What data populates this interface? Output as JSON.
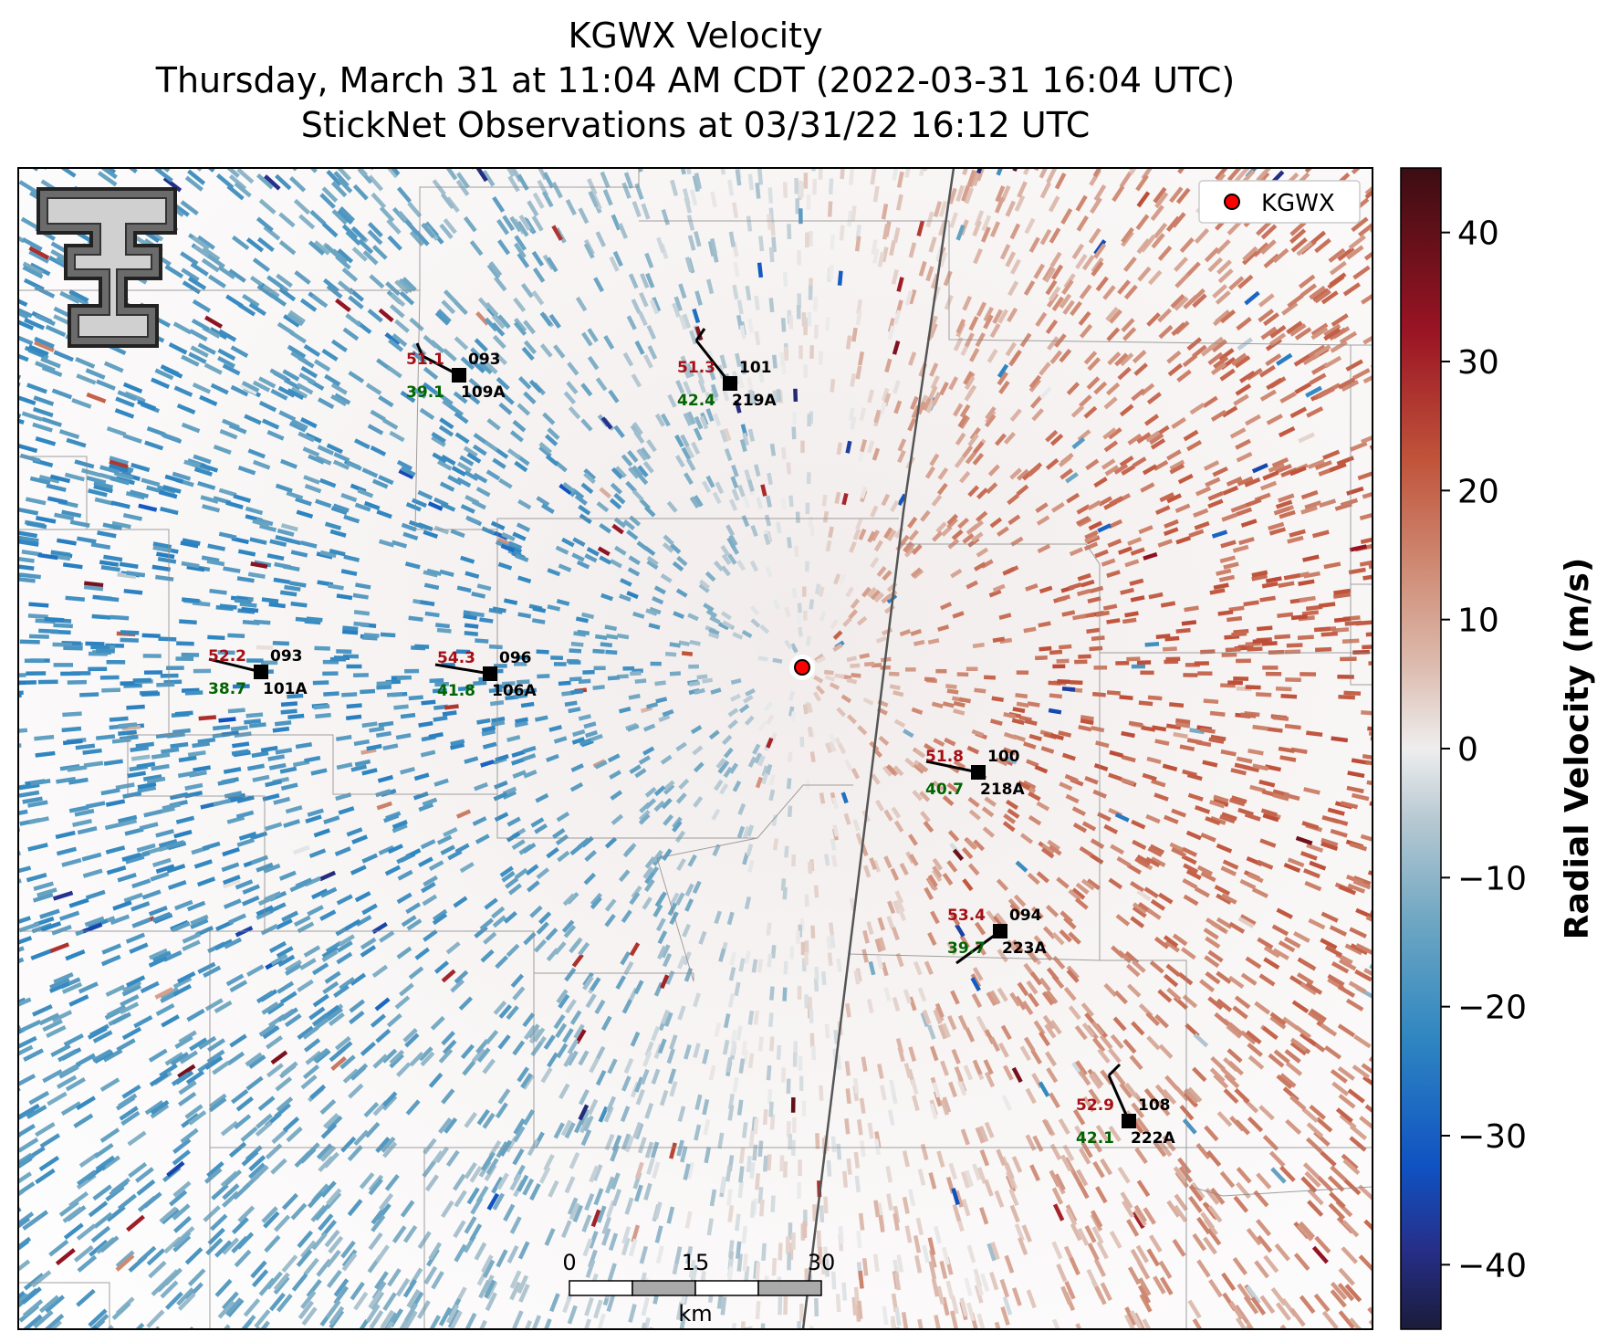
{
  "title": {
    "line1": "KGWX Velocity",
    "line2": "Thursday, March 31 at 11:04 AM CDT (2022-03-31 16:04 UTC)",
    "line3": "StickNet Observations at 03/31/22 16:12 UTC"
  },
  "radar": {
    "name": "KGWX",
    "legend_label": "KGWX"
  },
  "colorbar": {
    "label": "Radial Velocity (m/s)",
    "min": -45,
    "max": 45,
    "ticks": [
      -40,
      -30,
      -20,
      -10,
      0,
      10,
      20,
      30,
      40
    ],
    "tick_labels": [
      "−40",
      "−30",
      "−20",
      "−10",
      "0",
      "10",
      "20",
      "30",
      "40"
    ]
  },
  "scalebar": {
    "labels": [
      "0",
      "15",
      "30"
    ],
    "unit": "km"
  },
  "stations": [
    {
      "id": "109A",
      "temp": "51.1",
      "dew": "39.1",
      "pressure": "093"
    },
    {
      "id": "219A",
      "temp": "51.3",
      "dew": "42.4",
      "pressure": "101"
    },
    {
      "id": "101A",
      "temp": "52.2",
      "dew": "38.7",
      "pressure": "093"
    },
    {
      "id": "106A",
      "temp": "54.3",
      "dew": "41.8",
      "pressure": "096"
    },
    {
      "id": "218A",
      "temp": "51.8",
      "dew": "40.7",
      "pressure": "100"
    },
    {
      "id": "223A",
      "temp": "53.4",
      "dew": "39.7",
      "pressure": "094"
    },
    {
      "id": "222A",
      "temp": "52.9",
      "dew": "42.1",
      "pressure": "108"
    }
  ],
  "colors": {
    "temp": "#a50f15",
    "dew": "#006400",
    "station_marker": "#000000",
    "radar_marker": "#ff0000"
  },
  "logo": {
    "glyph": "T",
    "alt": "Texas Tech Double T"
  }
}
